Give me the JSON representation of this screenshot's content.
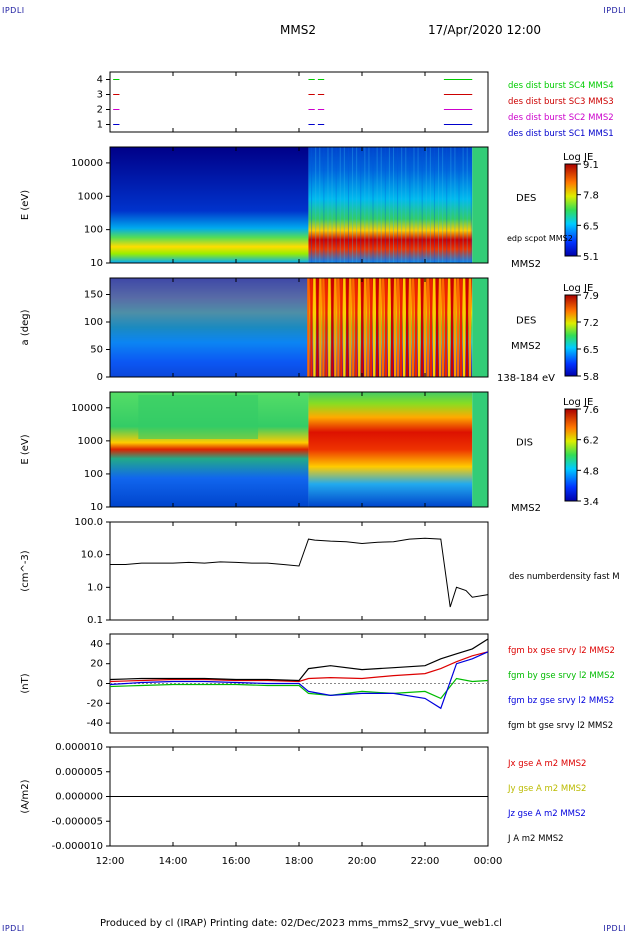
{
  "corner_labels": {
    "top_left": "IPDLI",
    "top_right": "IPDLI",
    "bottom_left": "IPDLI",
    "bottom_right": "IPDLI"
  },
  "header": {
    "spacecraft": "MMS2",
    "datetime": "17/Apr/2020 12:00"
  },
  "footer": {
    "text": "Produced by cl (IRAP)   Printing date: 02/Dec/2023   mms_mms2_srvy_vue_web1.cl"
  },
  "chart_data": [
    {
      "type": "line",
      "title": "",
      "ylabel": "",
      "ylim": [
        0.5,
        4.5
      ],
      "yticks": [
        "1",
        "2",
        "3",
        "4"
      ],
      "description_note": "burst interval indicators",
      "series": [
        {
          "name": "des dist burst SC1 MMS1",
          "color": "#0000cc",
          "level": 1
        },
        {
          "name": "des dist burst SC2 MMS2",
          "color": "#cc00cc",
          "level": 2
        },
        {
          "name": "des dist burst SC3 MMS3",
          "color": "#cc0000",
          "level": 3
        },
        {
          "name": "des dist burst SC4 MMS4",
          "color": "#00cc00",
          "level": 4
        }
      ],
      "intervals_hours": [
        [
          12.1,
          12.3
        ],
        [
          18.3,
          18.5
        ],
        [
          18.6,
          18.8
        ],
        [
          22.6,
          23.5
        ]
      ]
    },
    {
      "type": "heatmap",
      "ylabel": "E (eV)",
      "yscale": "log",
      "ylim": [
        10,
        30000
      ],
      "yticks": [
        "10",
        "100",
        "1000",
        "10000"
      ],
      "instrument": "DES",
      "colorbar": {
        "title": "Log JE",
        "ticks": [
          "9.1",
          "7.8",
          "6.5",
          "5.1"
        ]
      },
      "overlay": "edp scpot MMS2",
      "right_label": "MMS2"
    },
    {
      "type": "heatmap",
      "ylabel": "a (deg)",
      "ylim": [
        0,
        180
      ],
      "yticks": [
        "0",
        "50",
        "100",
        "150"
      ],
      "instrument": "DES",
      "colorbar": {
        "title": "Log JE",
        "ticks": [
          "7.9",
          "7.2",
          "6.5",
          "5.8"
        ]
      },
      "right_label": "MMS2",
      "energy_range": "138-184 eV"
    },
    {
      "type": "heatmap",
      "ylabel": "E (eV)",
      "yscale": "log",
      "ylim": [
        10,
        30000
      ],
      "yticks": [
        "10",
        "100",
        "1000",
        "10000"
      ],
      "instrument": "DIS",
      "colorbar": {
        "title": "Log JE",
        "ticks": [
          "7.6",
          "6.2",
          "4.8",
          "3.4"
        ]
      },
      "right_label": "MMS2"
    },
    {
      "type": "line",
      "ylabel": "(cm^-3)",
      "yscale": "log",
      "ylim": [
        0.1,
        100
      ],
      "yticks": [
        "0.1",
        "1.0",
        "10.0",
        "100.0"
      ],
      "series": [
        {
          "name": "des numberdensity fast M",
          "color": "#000000",
          "x": [
            12.0,
            12.5,
            13.0,
            13.5,
            14.0,
            14.5,
            15.0,
            15.5,
            16.0,
            16.5,
            17.0,
            17.5,
            18.0,
            18.3,
            18.5,
            19.0,
            19.5,
            20.0,
            20.5,
            21.0,
            21.5,
            22.0,
            22.5,
            22.8,
            23.0,
            23.3,
            23.5,
            24.0
          ],
          "y": [
            5.0,
            5.0,
            5.5,
            5.5,
            5.5,
            5.8,
            5.5,
            6.0,
            5.8,
            5.5,
            5.5,
            5.0,
            4.5,
            30,
            28,
            26,
            25,
            22,
            24,
            25,
            30,
            32,
            30,
            0.25,
            1.0,
            0.8,
            0.5,
            0.6
          ]
        }
      ]
    },
    {
      "type": "line",
      "ylabel": "(nT)",
      "ylim": [
        -50,
        50
      ],
      "yticks": [
        "-40",
        "-20",
        "0",
        "20",
        "40"
      ],
      "series": [
        {
          "name": "fgm bx gse srvy l2 MMS2",
          "color": "#dd0000",
          "x": [
            12,
            13,
            14,
            15,
            16,
            17,
            18,
            18.3,
            19,
            20,
            21,
            22,
            22.5,
            23,
            23.5,
            24
          ],
          "y": [
            2,
            3,
            4,
            4,
            3,
            3,
            2,
            5,
            6,
            5,
            8,
            10,
            15,
            22,
            28,
            32
          ]
        },
        {
          "name": "fgm by gse srvy l2 MMS2",
          "color": "#00bb00",
          "x": [
            12,
            13,
            14,
            15,
            16,
            17,
            18,
            18.3,
            19,
            20,
            21,
            22,
            22.5,
            23,
            23.5,
            24
          ],
          "y": [
            -3,
            -2,
            -1,
            -1,
            -1,
            -2,
            -2,
            -10,
            -12,
            -8,
            -10,
            -8,
            -15,
            5,
            2,
            3
          ]
        },
        {
          "name": "fgm bz gse srvy l2 MMS2",
          "color": "#0000dd",
          "x": [
            12,
            13,
            14,
            15,
            16,
            17,
            18,
            18.3,
            19,
            20,
            21,
            22,
            22.5,
            23,
            23.5,
            24
          ],
          "y": [
            -1,
            1,
            2,
            2,
            1,
            0,
            0,
            -8,
            -12,
            -10,
            -10,
            -15,
            -25,
            20,
            25,
            32
          ]
        },
        {
          "name": "fgm bt gse srvy l2 MMS2",
          "color": "#000000",
          "x": [
            12,
            13,
            14,
            15,
            16,
            17,
            18,
            18.3,
            19,
            20,
            21,
            22,
            22.5,
            23,
            23.5,
            24
          ],
          "y": [
            4,
            5,
            5,
            5,
            4,
            4,
            3,
            15,
            18,
            14,
            16,
            18,
            25,
            30,
            35,
            45
          ]
        }
      ]
    },
    {
      "type": "line",
      "ylabel": "(A/m2)",
      "ylim": [
        -1e-05,
        1e-05
      ],
      "yticks": [
        "-0.000010",
        "-0.000005",
        "0.000000",
        "0.000005",
        "0.000010"
      ],
      "series": [
        {
          "name": "Jx gse A m2 MMS2",
          "color": "#dd0000"
        },
        {
          "name": "Jy gse A m2 MMS2",
          "color": "#bbbb00"
        },
        {
          "name": "Jz gse A m2 MMS2",
          "color": "#0000dd"
        },
        {
          "name": "J A m2 MMS2",
          "color": "#000000"
        }
      ]
    }
  ],
  "time_axis": {
    "ticks": [
      "12:00",
      "14:00",
      "16:00",
      "18:00",
      "20:00",
      "22:00",
      "00:00"
    ],
    "range_hours": [
      12,
      24
    ]
  }
}
